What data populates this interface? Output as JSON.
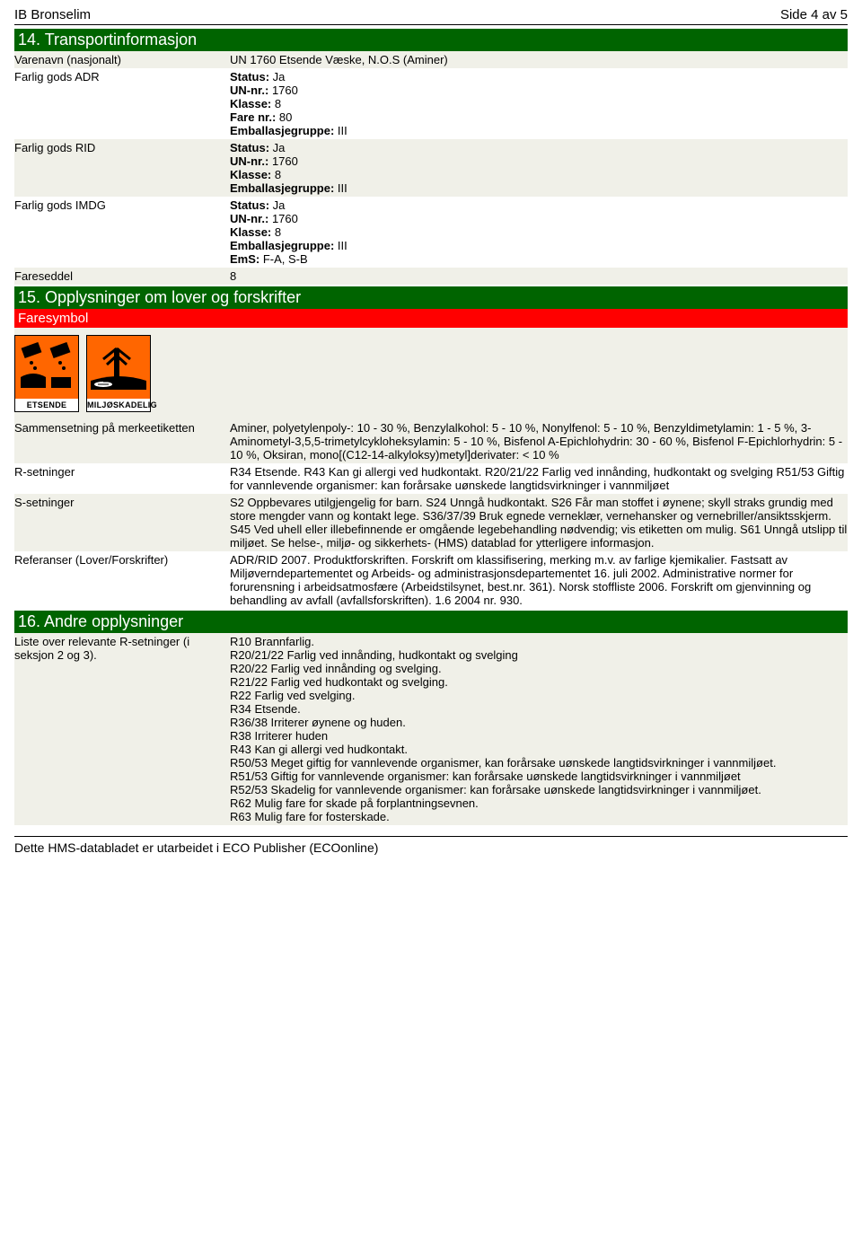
{
  "header": {
    "title": "IB Bronselim",
    "page": "Side 4 av 5"
  },
  "section14": {
    "heading": "14. Transportinformasjon",
    "rows": [
      {
        "label": "Varenavn (nasjonalt)",
        "value": "UN 1760 Etsende Væske, N.O.S (Aminer)"
      },
      {
        "label": "Farlig gods ADR",
        "value": "Status: Ja\nUN-nr.: 1760\nKlasse: 8\nFare nr.: 80\nEmballasjegruppe: III",
        "boldPrefixes": true
      },
      {
        "label": "Farlig gods RID",
        "value": "Status: Ja\nUN-nr.: 1760\nKlasse: 8\nEmballasjegruppe: III",
        "boldPrefixes": true
      },
      {
        "label": "Farlig gods IMDG",
        "value": "Status: Ja\nUN-nr.: 1760\nKlasse: 8\nEmballasjegruppe: III\nEmS: F-A, S-B",
        "boldPrefixes": true
      },
      {
        "label": "Fareseddel",
        "value": "8"
      }
    ]
  },
  "section15": {
    "heading": "15. Opplysninger om lover og forskrifter",
    "subheading": "Faresymbol",
    "hazards": [
      {
        "name": "ETSENDE",
        "glyph": "corrosive"
      },
      {
        "name": "MILJØSKADELIG",
        "glyph": "env"
      }
    ],
    "rows": [
      {
        "label": "Sammensetning på merkeetiketten",
        "value": "Aminer, polyetylenpoly-: 10 - 30 %, Benzylalkohol: 5 - 10 %, Nonylfenol: 5 - 10 %, Benzyldimetylamin: 1 - 5 %, 3-Aminometyl-3,5,5-trimetylcykloheksylamin: 5 - 10 %, Bisfenol A-Epichlohydrin: 30 - 60 %, Bisfenol F-Epichlorhydrin: 5 - 10 %, Oksiran, mono[(C12-14-alkyloksy)metyl]derivater: < 10 %"
      },
      {
        "label": "R-setninger",
        "value": "R34 Etsende. R43 Kan gi allergi ved hudkontakt. R20/21/22 Farlig ved innånding, hudkontakt og svelging R51/53 Giftig for vannlevende organismer: kan forårsake uønskede langtidsvirkninger i vannmiljøet"
      },
      {
        "label": "S-setninger",
        "value": "S2 Oppbevares utilgjengelig for barn. S24 Unngå hudkontakt. S26 Får man stoffet i øynene; skyll straks grundig med store mengder vann og kontakt lege. S36/37/39 Bruk egnede verneklær, vernehansker og vernebriller/ansiktsskjerm. S45 Ved uhell eller illebefinnende er omgående legebehandling nødvendig; vis etiketten om mulig. S61 Unngå utslipp til miljøet. Se helse-, miljø- og sikkerhets- (HMS) datablad for ytterligere informasjon."
      },
      {
        "label": "Referanser (Lover/Forskrifter)",
        "value": "ADR/RID 2007. Produktforskriften. Forskrift om klassifisering, merking m.v. av farlige kjemikalier. Fastsatt av Miljøverndepartementet og Arbeids- og administrasjonsdepartementet 16. juli 2002. Administrative normer for forurensning i arbeidsatmosfære (Arbeidstilsynet, best.nr. 361). Norsk stoffliste 2006. Forskrift om gjenvinning og behandling av avfall (avfallsforskriften). 1.6 2004 nr. 930."
      }
    ]
  },
  "section16": {
    "heading": "16. Andre opplysninger",
    "rows": [
      {
        "label": "Liste over relevante R-setninger (i seksjon 2 og 3).",
        "value": "R10 Brannfarlig.\nR20/21/22 Farlig ved innånding, hudkontakt og svelging\nR20/22 Farlig ved innånding og svelging.\nR21/22 Farlig ved hudkontakt og svelging.\nR22 Farlig ved svelging.\nR34 Etsende.\nR36/38 Irriterer øynene og huden.\nR38 Irriterer huden\nR43 Kan gi allergi ved hudkontakt.\nR50/53 Meget giftig for vannlevende organismer, kan forårsake uønskede langtidsvirkninger i vannmiljøet.\nR51/53 Giftig for vannlevende organismer: kan forårsake uønskede langtidsvirkninger i vannmiljøet\nR52/53 Skadelig for vannlevende organismer: kan forårsake uønskede langtidsvirkninger i vannmiljøet.\nR62 Mulig fare for skade på forplantningsevnen.\nR63 Mulig fare for fosterskade."
      }
    ]
  },
  "footer": "Dette HMS-databladet er utarbeidet i ECO Publisher (ECOonline)"
}
